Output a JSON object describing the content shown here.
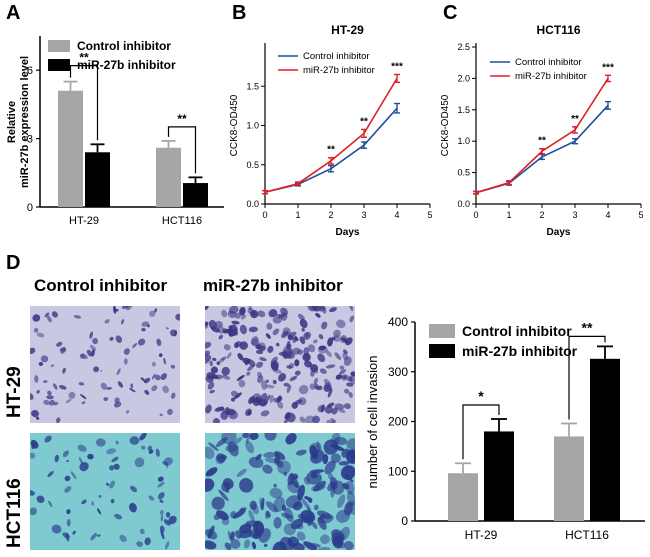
{
  "panels": {
    "a": "A",
    "b": "B",
    "c": "C",
    "d": "D"
  },
  "photos": {
    "col_headers": [
      "Control inhibitor",
      "miR-27b inhibitor"
    ],
    "row_headers": [
      "HT-29",
      "HCT116"
    ]
  },
  "colors": {
    "control_bar": "#a6a6a6",
    "inhibitor_bar": "#000000",
    "control_line": "#1f4e9a",
    "inhibitor_line": "#e01f26",
    "ht29_bg": "#c8c8e2",
    "ht29_stain": "#3a3582",
    "hct_bg": "#7fcad0",
    "hct_stain": "#2a3a8a"
  },
  "chart_data": [
    {
      "id": "A",
      "type": "bar",
      "categories": [
        "HT-29",
        "HCT116"
      ],
      "series": [
        {
          "name": "Control inhibitor",
          "values": [
            5.1,
            2.6
          ],
          "errors": [
            0.4,
            0.3
          ]
        },
        {
          "name": "miR-27b inhibitor",
          "values": [
            2.4,
            1.05
          ],
          "errors": [
            0.35,
            0.25
          ]
        }
      ],
      "ylabel_lines": [
        "Relative",
        "miR-27b expression level"
      ],
      "ylim": [
        0,
        7.5
      ],
      "yticks": [
        0,
        3,
        6
      ],
      "sig": [
        "**",
        "**"
      ],
      "legend": "top-right"
    },
    {
      "id": "B",
      "type": "line",
      "title": "HT-29",
      "x": [
        0,
        1,
        2,
        3,
        4
      ],
      "series": [
        {
          "name": "Control inhibitor",
          "values": [
            0.15,
            0.25,
            0.45,
            0.75,
            1.22
          ],
          "errors": [
            0.02,
            0.02,
            0.04,
            0.04,
            0.06
          ]
        },
        {
          "name": "miR-27b inhibitor",
          "values": [
            0.15,
            0.26,
            0.55,
            0.9,
            1.6
          ],
          "errors": [
            0.02,
            0.02,
            0.04,
            0.05,
            0.05
          ]
        }
      ],
      "xlabel": "Days",
      "ylabel": "CCK8-OD450",
      "xlim": [
        0,
        5
      ],
      "ylim": [
        0,
        2.0
      ],
      "xticks": [
        0,
        1,
        2,
        3,
        4,
        5
      ],
      "yticks": [
        0,
        0.5,
        1.0,
        1.5
      ],
      "ytick_labels": [
        "0.0",
        "0.5",
        "1.0",
        "1.5"
      ],
      "sig": [
        {
          "x": 2,
          "label": "**"
        },
        {
          "x": 3,
          "label": "**"
        },
        {
          "x": 4,
          "label": "***"
        }
      ],
      "legend": "top-left"
    },
    {
      "id": "C",
      "type": "line",
      "title": "HCT116",
      "x": [
        0,
        1,
        2,
        3,
        4
      ],
      "series": [
        {
          "name": "Control inhibitor",
          "values": [
            0.18,
            0.33,
            0.75,
            1.0,
            1.57
          ],
          "errors": [
            0.02,
            0.03,
            0.04,
            0.04,
            0.06
          ]
        },
        {
          "name": "miR-27b inhibitor",
          "values": [
            0.18,
            0.34,
            0.84,
            1.18,
            2.0
          ],
          "errors": [
            0.02,
            0.03,
            0.04,
            0.05,
            0.05
          ]
        }
      ],
      "xlabel": "Days",
      "ylabel": "CCK8-OD450",
      "xlim": [
        0,
        5
      ],
      "ylim": [
        0,
        2.5
      ],
      "xticks": [
        0,
        1,
        2,
        3,
        4,
        5
      ],
      "yticks": [
        0,
        0.5,
        1.0,
        1.5,
        2.0,
        2.5
      ],
      "ytick_labels": [
        "0.0",
        "0.5",
        "1.0",
        "1.5",
        "2.0",
        "2.5"
      ],
      "sig": [
        {
          "x": 2,
          "label": "**"
        },
        {
          "x": 3,
          "label": "**"
        },
        {
          "x": 4,
          "label": "***"
        }
      ],
      "legend": "top-left"
    },
    {
      "id": "D",
      "type": "bar",
      "categories": [
        "HT-29",
        "HCT116"
      ],
      "series": [
        {
          "name": "Control inhibitor",
          "values": [
            96,
            170
          ],
          "errors": [
            20,
            26
          ]
        },
        {
          "name": "miR-27b inhibitor",
          "values": [
            180,
            326
          ],
          "errors": [
            25,
            25
          ]
        }
      ],
      "ylabel": "number of cell invasion",
      "ylim": [
        0,
        400
      ],
      "yticks": [
        0,
        100,
        200,
        300,
        400
      ],
      "sig": [
        "*",
        "**"
      ],
      "legend": "top-left"
    }
  ]
}
